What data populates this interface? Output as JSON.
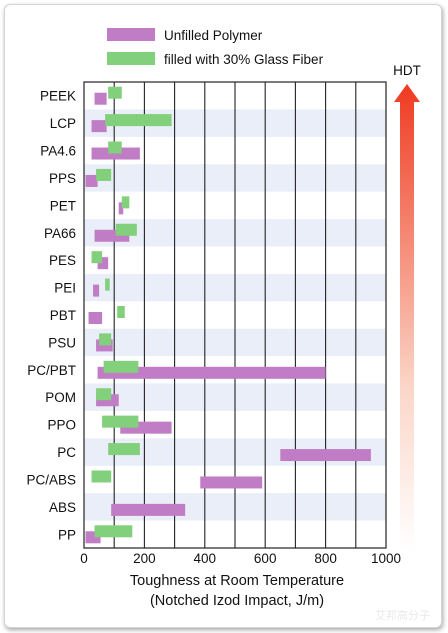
{
  "chart_data": {
    "type": "bar",
    "orientation": "horizontal-range",
    "categories": [
      "PEEK",
      "LCP",
      "PA4.6",
      "PPS",
      "PET",
      "PA66",
      "PES",
      "PEI",
      "PBT",
      "PSU",
      "PC/PBT",
      "POM",
      "PPO",
      "PC",
      "PC/ABS",
      "ABS",
      "PP"
    ],
    "series": [
      {
        "name": "Unfilled Polymer",
        "color": "#c07dc6",
        "ranges": [
          [
            35,
            75
          ],
          [
            25,
            75
          ],
          [
            25,
            185
          ],
          [
            5,
            45
          ],
          [
            115,
            130
          ],
          [
            35,
            150
          ],
          [
            45,
            80
          ],
          [
            30,
            50
          ],
          [
            15,
            60
          ],
          [
            40,
            95
          ],
          [
            45,
            800
          ],
          [
            40,
            115
          ],
          [
            120,
            290
          ],
          [
            650,
            950
          ],
          [
            385,
            590
          ],
          [
            90,
            335
          ],
          [
            5,
            55
          ]
        ]
      },
      {
        "name": "filled with 30% Glass Fiber",
        "color": "#82cf7c",
        "ranges": [
          [
            80,
            125
          ],
          [
            70,
            290
          ],
          [
            80,
            125
          ],
          [
            40,
            90
          ],
          [
            125,
            150
          ],
          [
            105,
            175
          ],
          [
            25,
            60
          ],
          [
            70,
            85
          ],
          [
            110,
            135
          ],
          [
            50,
            90
          ],
          [
            65,
            180
          ],
          [
            40,
            90
          ],
          [
            60,
            180
          ],
          [
            80,
            185
          ],
          [
            25,
            90
          ],
          null,
          [
            35,
            160
          ]
        ]
      }
    ],
    "xlim": [
      0,
      1000
    ],
    "xticks": [
      0,
      200,
      400,
      600,
      800,
      1000
    ],
    "xticks_labels": [
      "0",
      "200",
      "400",
      "600",
      "800",
      "1000"
    ],
    "gridlines": [
      100,
      200,
      300,
      400,
      500,
      600,
      700,
      800,
      900
    ],
    "xlabel_line1": "Toughness at Room Temperature",
    "xlabel_line2": "(Notched Izod Impact, J/m)",
    "hdt_label": "HDT",
    "legend_position": "top"
  },
  "watermark": "艾邦高分子"
}
